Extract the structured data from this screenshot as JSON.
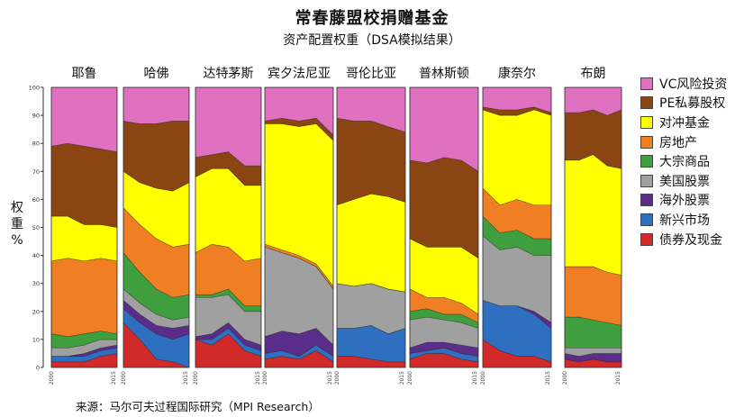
{
  "title": "常春藤盟校捐赠基金",
  "subtitle": "资产配置权重（DSA模拟结果）",
  "ylabel": "权\n重\n%",
  "source": "来源：马尔可夫过程国际研究（MPI Research）",
  "colors": {
    "vc": "#e070c0",
    "pe": "#8b4513",
    "hedge": "#ffff00",
    "realestate": "#ef7f22",
    "commodity": "#3f9f3f",
    "us_equity": "#a0a0a0",
    "foreign_equity": "#5a2d8a",
    "em": "#2f6fc0",
    "bonds": "#d22a2a"
  },
  "chart_data": {
    "type": "area",
    "stacked": true,
    "stack_order": [
      "bonds",
      "em",
      "foreign_equity",
      "us_equity",
      "commodity",
      "realestate",
      "hedge",
      "pe",
      "vc"
    ],
    "ylim": [
      0,
      100
    ],
    "yticks": [
      0,
      10,
      20,
      30,
      40,
      50,
      60,
      70,
      80,
      90,
      100
    ],
    "xtick_labels": [
      "2000",
      "2015"
    ],
    "legend": [
      {
        "key": "vc",
        "label": "VC风险投资"
      },
      {
        "key": "pe",
        "label": "PE私募股权"
      },
      {
        "key": "hedge",
        "label": "对冲基金"
      },
      {
        "key": "realestate",
        "label": "房地产"
      },
      {
        "key": "commodity",
        "label": "大宗商品"
      },
      {
        "key": "us_equity",
        "label": "美国股票"
      },
      {
        "key": "foreign_equity",
        "label": "海外股票"
      },
      {
        "key": "em",
        "label": "新兴市场"
      },
      {
        "key": "bonds",
        "label": "债券及现金"
      }
    ],
    "panels": [
      {
        "name": "耶鲁",
        "bonds": [
          2,
          2,
          2,
          4,
          5
        ],
        "em": [
          2,
          2,
          2,
          2,
          2
        ],
        "foreign_equity": [
          0,
          0,
          1,
          1,
          1
        ],
        "us_equity": [
          3,
          3,
          3,
          3,
          2
        ],
        "commodity": [
          5,
          4,
          4,
          3,
          2
        ],
        "realestate": [
          26,
          28,
          26,
          26,
          26
        ],
        "hedge": [
          16,
          15,
          13,
          12,
          12
        ],
        "pe": [
          25,
          26,
          28,
          27,
          27
        ],
        "vc": [
          21,
          20,
          21,
          22,
          23
        ]
      },
      {
        "name": "哈佛",
        "bonds": [
          16,
          10,
          3,
          2,
          0
        ],
        "em": [
          5,
          6,
          9,
          8,
          12
        ],
        "foreign_equity": [
          3,
          3,
          3,
          4,
          3
        ],
        "us_equity": [
          4,
          4,
          4,
          3,
          3
        ],
        "commodity": [
          13,
          11,
          9,
          8,
          8
        ],
        "realestate": [
          16,
          17,
          18,
          18,
          18
        ],
        "hedge": [
          13,
          15,
          18,
          20,
          22
        ],
        "pe": [
          18,
          21,
          23,
          25,
          22
        ],
        "vc": [
          12,
          13,
          13,
          12,
          12
        ]
      },
      {
        "name": "达特茅斯",
        "bonds": [
          10,
          8,
          12,
          6,
          4
        ],
        "em": [
          0,
          2,
          2,
          2,
          2
        ],
        "foreign_equity": [
          1,
          2,
          2,
          2,
          2
        ],
        "us_equity": [
          14,
          13,
          10,
          10,
          12
        ],
        "commodity": [
          1,
          1,
          2,
          2,
          2
        ],
        "realestate": [
          15,
          18,
          15,
          16,
          17
        ],
        "hedge": [
          27,
          27,
          28,
          27,
          26
        ],
        "pe": [
          7,
          5,
          6,
          7,
          7
        ],
        "vc": [
          25,
          24,
          23,
          28,
          28
        ]
      },
      {
        "name": "宾夕法尼亚",
        "bonds": [
          3,
          4,
          3,
          6,
          2
        ],
        "em": [
          2,
          2,
          1,
          2,
          2
        ],
        "foreign_equity": [
          6,
          7,
          8,
          6,
          4
        ],
        "us_equity": [
          32,
          28,
          27,
          22,
          20
        ],
        "commodity": [
          0,
          0,
          0,
          0,
          0
        ],
        "realestate": [
          1,
          1,
          1,
          1,
          1
        ],
        "hedge": [
          43,
          45,
          46,
          50,
          52
        ],
        "pe": [
          1,
          2,
          2,
          2,
          2
        ],
        "vc": [
          12,
          11,
          12,
          11,
          17
        ]
      },
      {
        "name": "哥伦比亚",
        "bonds": [
          4,
          4,
          3,
          2,
          2
        ],
        "em": [
          10,
          10,
          12,
          10,
          12
        ],
        "foreign_equity": [
          0,
          0,
          0,
          0,
          0
        ],
        "us_equity": [
          16,
          15,
          15,
          16,
          13
        ],
        "commodity": [
          0,
          0,
          0,
          0,
          0
        ],
        "realestate": [
          0,
          0,
          0,
          0,
          0
        ],
        "hedge": [
          28,
          31,
          32,
          33,
          32
        ],
        "pe": [
          31,
          28,
          26,
          25,
          25
        ],
        "vc": [
          11,
          12,
          12,
          14,
          16
        ]
      },
      {
        "name": "普林斯顿",
        "bonds": [
          3,
          5,
          5,
          3,
          2
        ],
        "em": [
          2,
          1,
          2,
          2,
          2
        ],
        "foreign_equity": [
          2,
          3,
          2,
          3,
          3
        ],
        "us_equity": [
          10,
          9,
          8,
          8,
          7
        ],
        "commodity": [
          3,
          3,
          2,
          3,
          2
        ],
        "realestate": [
          8,
          4,
          6,
          4,
          3
        ],
        "hedge": [
          18,
          18,
          18,
          20,
          20
        ],
        "pe": [
          28,
          30,
          32,
          31,
          31
        ],
        "vc": [
          26,
          27,
          25,
          26,
          30
        ]
      },
      {
        "name": "康奈尔",
        "bonds": [
          10,
          6,
          4,
          4,
          2
        ],
        "em": [
          14,
          16,
          18,
          15,
          12
        ],
        "foreign_equity": [
          0,
          0,
          0,
          1,
          2
        ],
        "us_equity": [
          23,
          20,
          21,
          20,
          24
        ],
        "commodity": [
          7,
          6,
          6,
          6,
          6
        ],
        "realestate": [
          10,
          10,
          11,
          12,
          12
        ],
        "hedge": [
          28,
          32,
          30,
          34,
          32
        ],
        "pe": [
          1,
          2,
          2,
          1,
          1
        ],
        "vc": [
          7,
          8,
          8,
          7,
          9
        ]
      },
      {
        "name": "布朗",
        "bonds": [
          3,
          2,
          3,
          2,
          2
        ],
        "em": [
          0,
          0,
          0,
          0,
          0
        ],
        "foreign_equity": [
          2,
          2,
          2,
          3,
          3
        ],
        "us_equity": [
          2,
          3,
          2,
          2,
          2
        ],
        "commodity": [
          11,
          11,
          10,
          9,
          8
        ],
        "realestate": [
          18,
          18,
          19,
          18,
          18
        ],
        "hedge": [
          38,
          38,
          40,
          38,
          38
        ],
        "pe": [
          17,
          17,
          16,
          18,
          21
        ],
        "vc": [
          9,
          9,
          8,
          10,
          8
        ]
      }
    ]
  }
}
